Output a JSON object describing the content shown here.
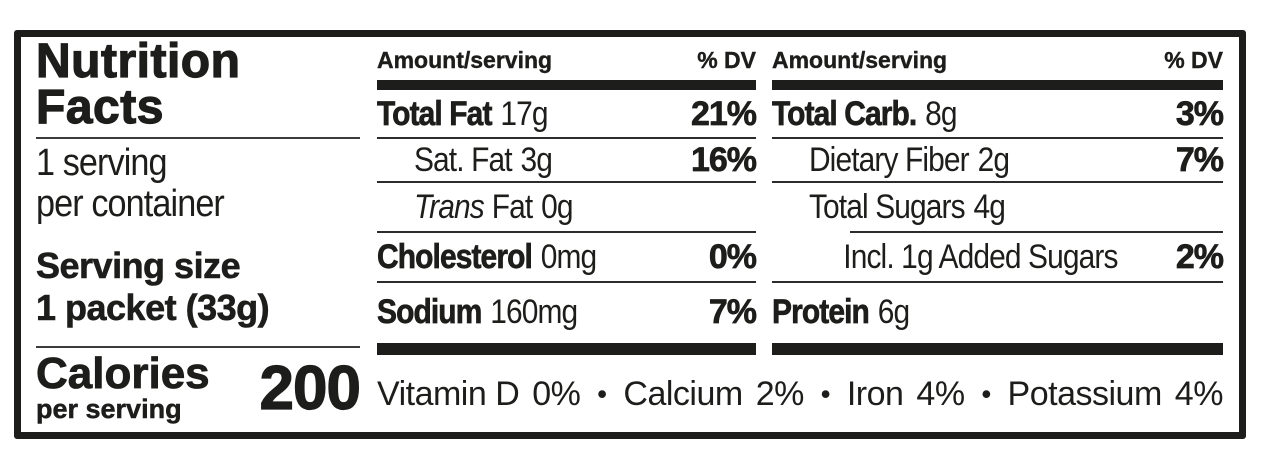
{
  "colors": {
    "ink": "#1d1d1b",
    "background": "#ffffff"
  },
  "panel": {
    "title_line1": "Nutrition",
    "title_line2": "Facts",
    "servings_per_container_line1": "1 serving",
    "servings_per_container_line2": "per container",
    "serving_size_label": "Serving size",
    "serving_size_value": "1 packet (33g)",
    "calories_label": "Calories",
    "calories_sublabel": "per serving",
    "calories_value": "200"
  },
  "columns": [
    {
      "header_amount": "Amount/serving",
      "header_dv": "% DV",
      "rows": [
        {
          "name": "Total Fat",
          "amount": "17g",
          "dv": "21%"
        },
        {
          "name": "Sat. Fat",
          "amount": "3g",
          "dv": "16%"
        },
        {
          "name_italic": "Trans",
          "name": "Fat",
          "amount": "0g"
        },
        {
          "name": "Cholesterol",
          "amount": "0mg",
          "dv": "0%"
        },
        {
          "name": "Sodium",
          "amount": "160mg",
          "dv": "7%"
        }
      ]
    },
    {
      "header_amount": "Amount/serving",
      "header_dv": "% DV",
      "rows": [
        {
          "name": "Total Carb.",
          "amount": "8g",
          "dv": "3%"
        },
        {
          "name": "Dietary Fiber",
          "amount": "2g",
          "dv": "7%"
        },
        {
          "name": "Total Sugars",
          "amount": "4g"
        },
        {
          "name": "Incl. 1g Added Sugars",
          "dv": "2%"
        },
        {
          "name": "Protein",
          "amount": "6g"
        }
      ]
    }
  ],
  "micronutrients": {
    "separator": "•",
    "items": [
      {
        "name": "Vitamin D",
        "value": "0%"
      },
      {
        "name": "Calcium",
        "value": "2%"
      },
      {
        "name": "Iron",
        "value": "4%"
      },
      {
        "name": "Potassium",
        "value": "4%"
      }
    ]
  }
}
